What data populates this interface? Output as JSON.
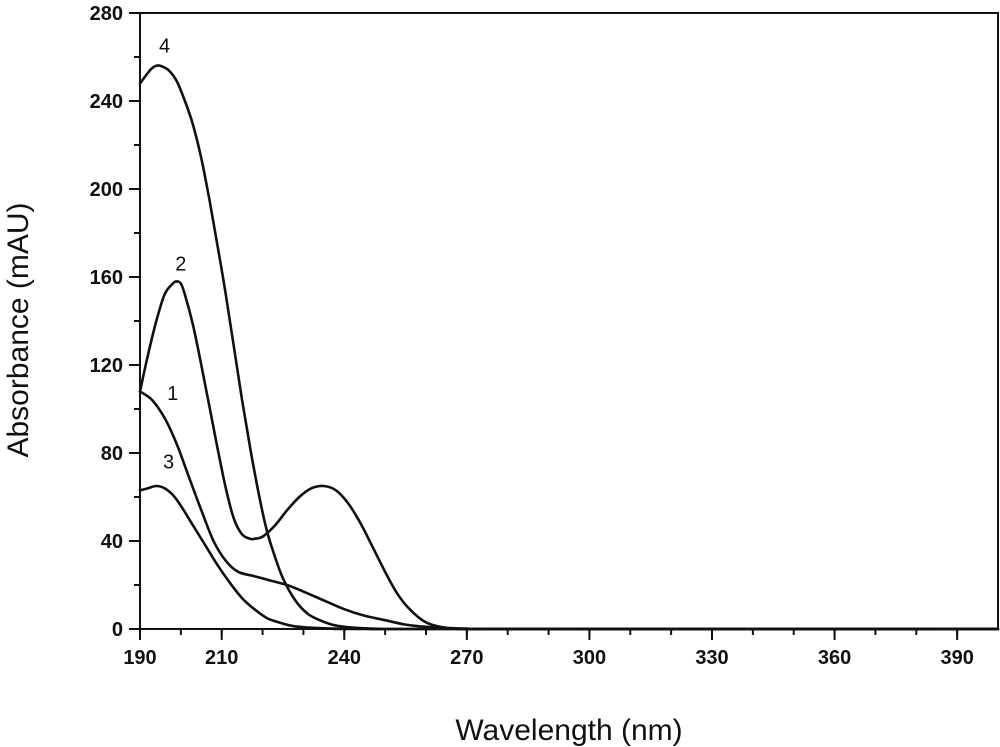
{
  "chart_data": {
    "type": "line",
    "xlabel": "Wavelength (nm)",
    "ylabel": "Absorbance (mAU)",
    "xlim": [
      190,
      400
    ],
    "ylim": [
      0,
      280
    ],
    "x_ticks": [
      190,
      210,
      240,
      270,
      300,
      330,
      360,
      390
    ],
    "y_ticks": [
      0,
      40,
      80,
      120,
      160,
      200,
      240,
      280
    ],
    "x_minor_step": 10,
    "y_minor_step": 20,
    "grid": false,
    "legend": "none",
    "line_color": "#111111",
    "series": [
      {
        "label": "1",
        "label_at": [
          198,
          104
        ],
        "x": [
          190,
          193,
          196,
          199,
          202,
          205,
          208,
          211,
          214,
          218,
          222,
          226,
          230,
          235,
          240,
          245,
          250,
          255,
          260,
          265,
          270,
          280,
          400
        ],
        "y": [
          108,
          104,
          96,
          84,
          69,
          54,
          40,
          31,
          26,
          24,
          22,
          20,
          17,
          13,
          9,
          6,
          4,
          2,
          1,
          0.5,
          0.2,
          0,
          0
        ]
      },
      {
        "label": "2",
        "label_at": [
          200,
          163
        ],
        "x": [
          190,
          192,
          194,
          196,
          198,
          199,
          200,
          201,
          203,
          205,
          207,
          209,
          211,
          213,
          215,
          217,
          218,
          220,
          223,
          226,
          229,
          232,
          235,
          238,
          241,
          244,
          247,
          250,
          253,
          256,
          260,
          265,
          270,
          280,
          400
        ],
        "y": [
          108,
          125,
          140,
          152,
          157,
          158,
          157,
          152,
          138,
          120,
          101,
          82,
          64,
          50,
          43,
          41,
          41,
          42,
          47,
          54,
          60,
          64,
          65,
          63,
          57,
          48,
          37,
          26,
          16,
          9,
          3,
          0.5,
          0,
          0,
          0
        ]
      },
      {
        "label": "3",
        "label_at": [
          197,
          73
        ],
        "x": [
          190,
          192,
          194,
          196,
          198,
          200,
          203,
          206,
          209,
          212,
          215,
          218,
          221,
          224,
          227,
          230,
          235,
          240,
          245,
          250,
          400
        ],
        "y": [
          63,
          64,
          65,
          64,
          61,
          56,
          47,
          38,
          29,
          21,
          14,
          9,
          5,
          3,
          1.5,
          0.8,
          0.3,
          0.1,
          0,
          0,
          0
        ]
      },
      {
        "label": "4",
        "label_at": [
          196,
          262
        ],
        "x": [
          190,
          192,
          193,
          194,
          195,
          197,
          199,
          201,
          203,
          205,
          207,
          209,
          211,
          213,
          215,
          217,
          219,
          221,
          223,
          225,
          228,
          231,
          234,
          237,
          240,
          245,
          250,
          260,
          400
        ],
        "y": [
          248,
          253,
          255,
          256,
          256,
          254,
          249,
          240,
          229,
          214,
          195,
          174,
          152,
          128,
          104,
          82,
          62,
          45,
          33,
          23,
          13,
          7,
          4,
          2,
          1,
          0.3,
          0,
          0,
          0
        ]
      }
    ]
  }
}
